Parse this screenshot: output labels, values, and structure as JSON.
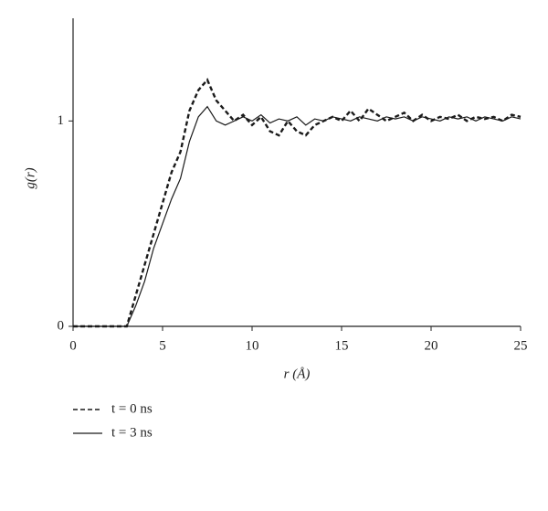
{
  "chart_data": {
    "type": "line",
    "xlabel": "r (Å)",
    "ylabel": "g(r)",
    "x": [
      0,
      0.5,
      1,
      1.5,
      2,
      2.5,
      3,
      3.5,
      4,
      4.5,
      5,
      5.5,
      6,
      6.5,
      7,
      7.5,
      8,
      8.5,
      9,
      9.5,
      10,
      10.5,
      11,
      11.5,
      12,
      12.5,
      13,
      13.5,
      14,
      14.5,
      15,
      15.5,
      16,
      16.5,
      17,
      17.5,
      18,
      18.5,
      19,
      19.5,
      20,
      20.5,
      21,
      21.5,
      22,
      22.5,
      23,
      23.5,
      24,
      24.5,
      25
    ],
    "series": [
      {
        "name": "t = 0 ns",
        "color": "#1a1a1a",
        "line_style": "dashed",
        "values": [
          0,
          0,
          0,
          0,
          0,
          0,
          0,
          0.15,
          0.3,
          0.45,
          0.6,
          0.75,
          0.85,
          1.05,
          1.15,
          1.2,
          1.1,
          1.05,
          1.0,
          1.03,
          0.98,
          1.02,
          0.95,
          0.93,
          1.0,
          0.95,
          0.93,
          0.98,
          1.0,
          1.02,
          1.0,
          1.05,
          1.0,
          1.06,
          1.03,
          1.0,
          1.02,
          1.04,
          1.0,
          1.03,
          1.0,
          1.02,
          1.01,
          1.03,
          1.0,
          1.02,
          1.01,
          1.02,
          1.0,
          1.03,
          1.02
        ]
      },
      {
        "name": "t = 3 ns",
        "color": "#1a1a1a",
        "line_style": "solid",
        "values": [
          0,
          0,
          0,
          0,
          0,
          0,
          0,
          0.1,
          0.22,
          0.38,
          0.5,
          0.62,
          0.72,
          0.9,
          1.02,
          1.07,
          1.0,
          0.98,
          1.0,
          1.02,
          1.0,
          1.03,
          0.99,
          1.01,
          1.0,
          1.02,
          0.98,
          1.01,
          1.0,
          1.02,
          1.01,
          1.0,
          1.02,
          1.01,
          1.0,
          1.02,
          1.01,
          1.02,
          1.0,
          1.02,
          1.01,
          1.0,
          1.02,
          1.01,
          1.02,
          1.0,
          1.02,
          1.01,
          1.0,
          1.02,
          1.01
        ]
      }
    ],
    "xlim": [
      0,
      25
    ],
    "xticks": [
      0,
      5,
      10,
      15,
      20,
      25
    ],
    "ylim": [
      0,
      1.5
    ],
    "yticks": [
      0,
      1
    ],
    "grid": false
  }
}
